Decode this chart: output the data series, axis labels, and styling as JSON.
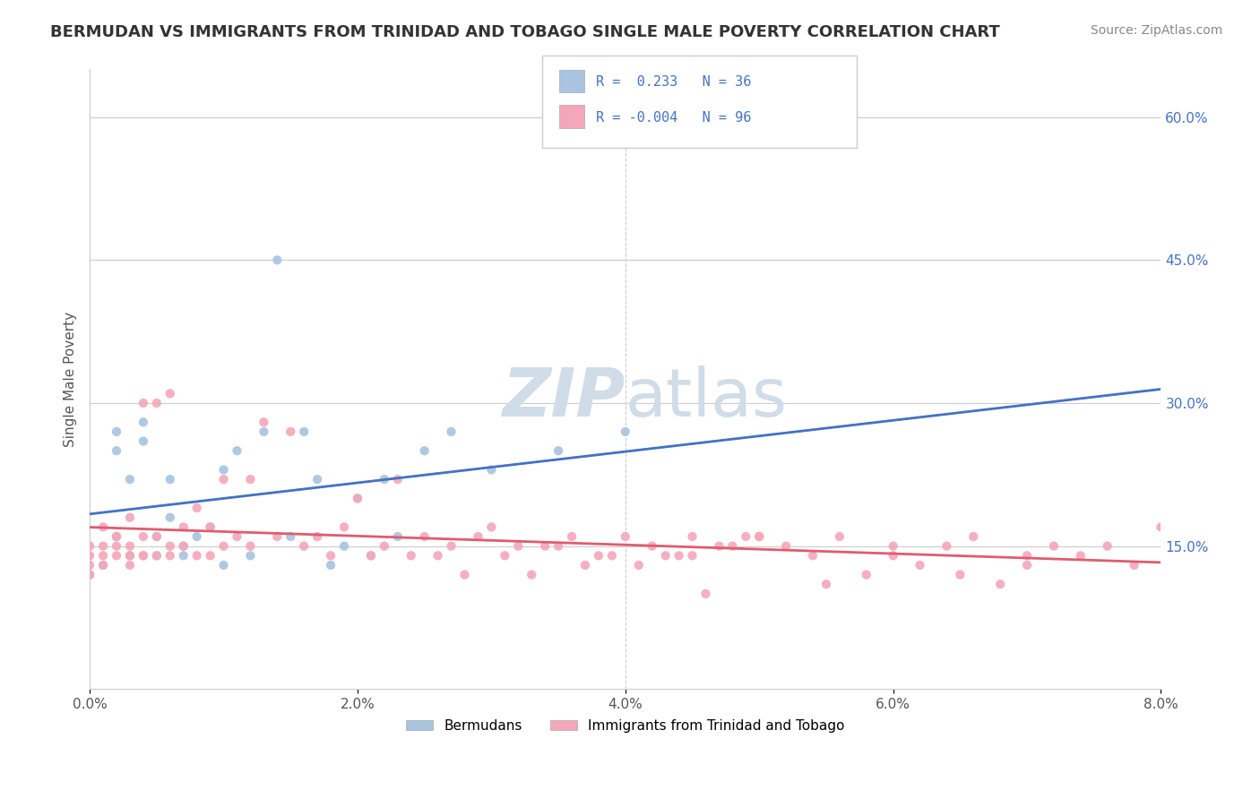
{
  "title": "BERMUDAN VS IMMIGRANTS FROM TRINIDAD AND TOBAGO SINGLE MALE POVERTY CORRELATION CHART",
  "source": "Source: ZipAtlas.com",
  "xlabel": "",
  "ylabel": "Single Male Poverty",
  "x_tick_labels": [
    "0.0%",
    "2.0%",
    "4.0%",
    "6.0%",
    "8.0%"
  ],
  "x_tick_vals": [
    0.0,
    0.02,
    0.04,
    0.06,
    0.08
  ],
  "y_tick_labels_right": [
    "15.0%",
    "30.0%",
    "45.0%",
    "60.0%"
  ],
  "y_tick_vals": [
    0.15,
    0.3,
    0.45,
    0.6
  ],
  "xlim": [
    0.0,
    0.08
  ],
  "ylim": [
    0.0,
    0.65
  ],
  "r_bermudan": 0.233,
  "n_bermudan": 36,
  "r_tt": -0.004,
  "n_tt": 96,
  "legend_label_blue": "Bermudans",
  "legend_label_pink": "Immigrants from Trinidad and Tobago",
  "dot_color_blue": "#a8c4e0",
  "dot_color_pink": "#f4a7b9",
  "trend_color_blue": "#4472c4",
  "trend_color_pink": "#e05c6e",
  "trend_color_dashed": "#b0b0b0",
  "watermark_color": "#d0dce8",
  "background_color": "#ffffff",
  "bermudan_x": [
    0.0,
    0.001,
    0.002,
    0.002,
    0.003,
    0.003,
    0.004,
    0.004,
    0.005,
    0.005,
    0.006,
    0.006,
    0.007,
    0.007,
    0.008,
    0.009,
    0.01,
    0.01,
    0.011,
    0.012,
    0.013,
    0.014,
    0.015,
    0.016,
    0.017,
    0.018,
    0.019,
    0.02,
    0.021,
    0.022,
    0.023,
    0.025,
    0.027,
    0.03,
    0.035,
    0.04
  ],
  "bermudan_y": [
    0.12,
    0.13,
    0.27,
    0.25,
    0.22,
    0.14,
    0.28,
    0.26,
    0.14,
    0.16,
    0.18,
    0.22,
    0.15,
    0.14,
    0.16,
    0.17,
    0.23,
    0.13,
    0.25,
    0.14,
    0.27,
    0.45,
    0.16,
    0.27,
    0.22,
    0.13,
    0.15,
    0.2,
    0.14,
    0.22,
    0.16,
    0.25,
    0.27,
    0.23,
    0.25,
    0.27
  ],
  "tt_x": [
    0.0,
    0.0,
    0.0,
    0.0,
    0.001,
    0.001,
    0.001,
    0.001,
    0.002,
    0.002,
    0.002,
    0.002,
    0.003,
    0.003,
    0.003,
    0.003,
    0.004,
    0.004,
    0.004,
    0.004,
    0.005,
    0.005,
    0.005,
    0.006,
    0.006,
    0.006,
    0.007,
    0.007,
    0.008,
    0.008,
    0.009,
    0.009,
    0.01,
    0.01,
    0.011,
    0.012,
    0.012,
    0.013,
    0.014,
    0.015,
    0.016,
    0.017,
    0.018,
    0.019,
    0.02,
    0.021,
    0.022,
    0.023,
    0.024,
    0.025,
    0.026,
    0.027,
    0.028,
    0.029,
    0.03,
    0.031,
    0.032,
    0.033,
    0.034,
    0.035,
    0.036,
    0.037,
    0.038,
    0.039,
    0.04,
    0.041,
    0.042,
    0.043,
    0.044,
    0.045,
    0.046,
    0.047,
    0.048,
    0.049,
    0.05,
    0.052,
    0.054,
    0.056,
    0.058,
    0.06,
    0.062,
    0.064,
    0.066,
    0.068,
    0.07,
    0.072,
    0.074,
    0.076,
    0.078,
    0.08,
    0.06,
    0.065,
    0.055,
    0.05,
    0.045,
    0.07
  ],
  "tt_y": [
    0.12,
    0.13,
    0.14,
    0.15,
    0.14,
    0.15,
    0.17,
    0.13,
    0.14,
    0.16,
    0.16,
    0.15,
    0.14,
    0.18,
    0.15,
    0.13,
    0.14,
    0.16,
    0.3,
    0.14,
    0.14,
    0.3,
    0.16,
    0.15,
    0.31,
    0.14,
    0.15,
    0.17,
    0.14,
    0.19,
    0.14,
    0.17,
    0.15,
    0.22,
    0.16,
    0.22,
    0.15,
    0.28,
    0.16,
    0.27,
    0.15,
    0.16,
    0.14,
    0.17,
    0.2,
    0.14,
    0.15,
    0.22,
    0.14,
    0.16,
    0.14,
    0.15,
    0.12,
    0.16,
    0.17,
    0.14,
    0.15,
    0.12,
    0.15,
    0.15,
    0.16,
    0.13,
    0.14,
    0.14,
    0.16,
    0.13,
    0.15,
    0.14,
    0.14,
    0.16,
    0.1,
    0.15,
    0.15,
    0.16,
    0.16,
    0.15,
    0.14,
    0.16,
    0.12,
    0.14,
    0.13,
    0.15,
    0.16,
    0.11,
    0.14,
    0.15,
    0.14,
    0.15,
    0.13,
    0.17,
    0.15,
    0.12,
    0.11,
    0.16,
    0.14,
    0.13
  ]
}
